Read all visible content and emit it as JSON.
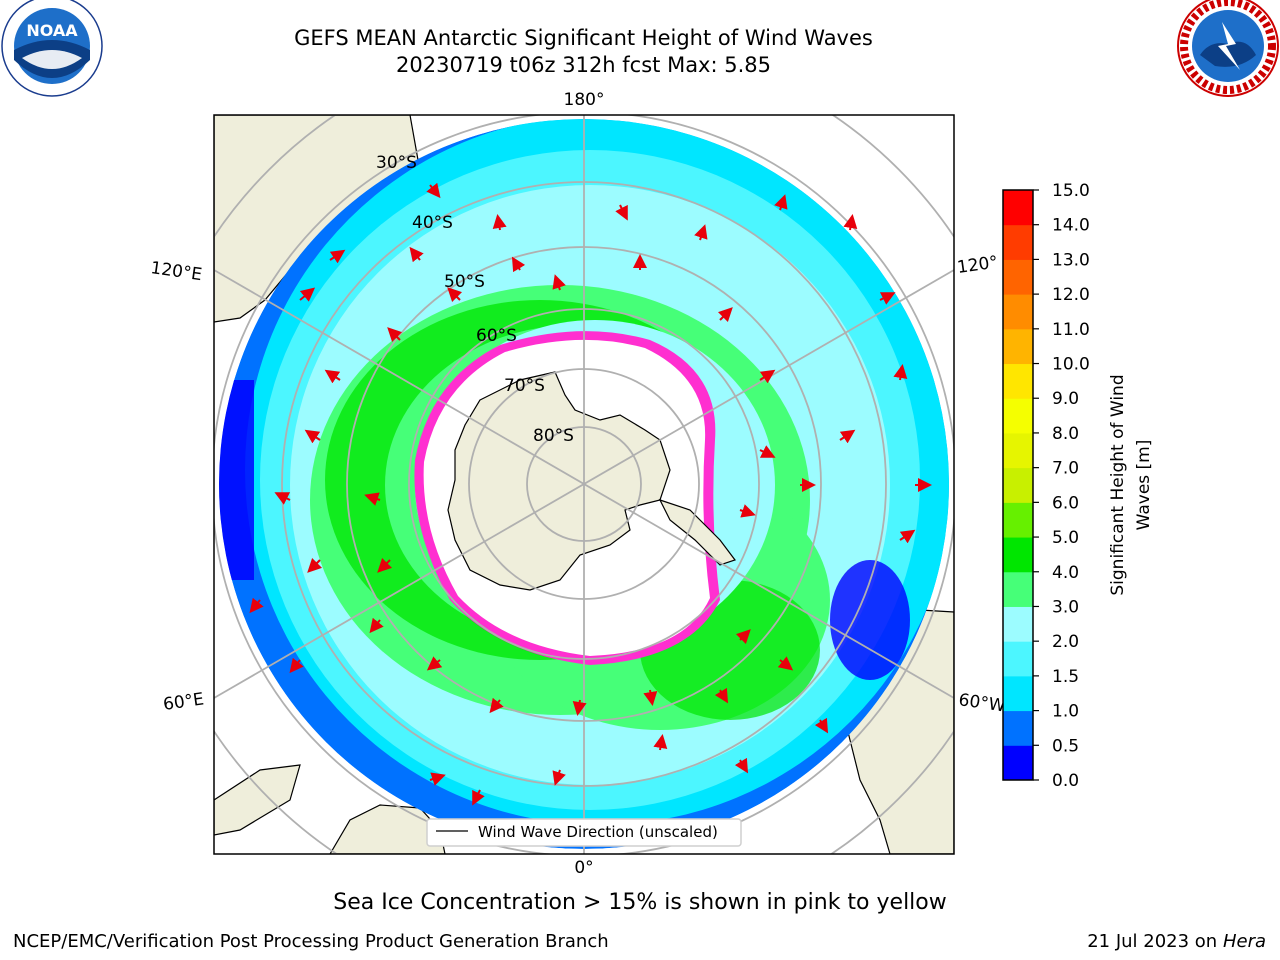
{
  "title": {
    "line1": "GEFS MEAN Antarctic Significant Height of Wind Waves",
    "line2": "20230719 t06z 312h fcst   Max: 5.85"
  },
  "logos": {
    "left": {
      "name": "noaa-logo",
      "text": "NOAA"
    },
    "right": {
      "name": "nws-logo"
    }
  },
  "map": {
    "projection": "south-polar-stereographic",
    "longitude_labels": [
      "180°",
      "120°E",
      "120°",
      "60°E",
      "60°W",
      "0°"
    ],
    "latitude_labels": [
      "30°S",
      "40°S",
      "50°S",
      "60°S",
      "70°S",
      "80°S"
    ],
    "legend_label": "Wind Wave Direction (unscaled)",
    "colors": {
      "land": "#efeedb",
      "ice_edge": "#ff2fd0",
      "vector": "#e8000b",
      "grid": "#b0b0b0"
    }
  },
  "colorbar": {
    "label": "Significant Height of Wind Waves [m]",
    "ticks": [
      "0.0",
      "0.5",
      "1.0",
      "1.5",
      "2.0",
      "3.0",
      "4.0",
      "5.0",
      "6.0",
      "7.0",
      "8.0",
      "9.0",
      "10.0",
      "11.0",
      "12.0",
      "13.0",
      "14.0",
      "15.0"
    ],
    "colors": [
      "#0000ff",
      "#0072ff",
      "#00e6ff",
      "#4cf6ff",
      "#9cfcff",
      "#46ff78",
      "#00e600",
      "#66f000",
      "#c8f000",
      "#e6f500",
      "#f5ff00",
      "#ffe600",
      "#ffb400",
      "#ff8c00",
      "#ff6400",
      "#ff3c00",
      "#ff0000"
    ]
  },
  "footer": {
    "note": "Sea Ice Concentration > 15% is shown in pink to yellow",
    "credit": "NCEP/EMC/Verification Post Processing Product Generation Branch",
    "date_prefix": "21 Jul 2023 on",
    "host": "Hera"
  }
}
